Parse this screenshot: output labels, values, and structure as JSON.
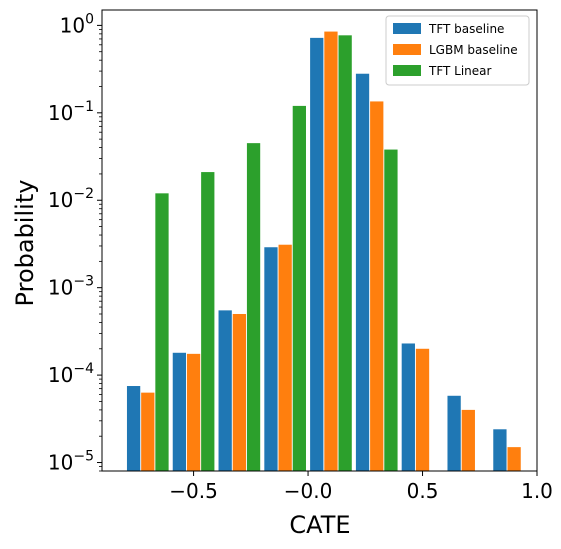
{
  "chart_data": {
    "type": "bar",
    "xlabel": "CATE",
    "ylabel": "Probability",
    "yscale": "log",
    "xlim": [
      -0.9,
      1.0
    ],
    "ylim": [
      8e-06,
      1.5
    ],
    "xticks": [
      {
        "value": -0.5,
        "label": "−0.5"
      },
      {
        "value": 0.0,
        "label": "−0.0"
      },
      {
        "value": 0.5,
        "label": "0.5"
      },
      {
        "value": 1.0,
        "label": "1.0"
      }
    ],
    "yticks": [
      {
        "value": 1e-05,
        "base": "10",
        "exp": "−5"
      },
      {
        "value": 0.0001,
        "base": "10",
        "exp": "−4"
      },
      {
        "value": 0.001,
        "base": "10",
        "exp": "−3"
      },
      {
        "value": 0.01,
        "base": "10",
        "exp": "−2"
      },
      {
        "value": 0.1,
        "base": "10",
        "exp": "−1"
      },
      {
        "value": 1,
        "base": "10",
        "exp": "0"
      }
    ],
    "bin_centers": [
      -0.7,
      -0.5,
      -0.3,
      -0.1,
      0.1,
      0.3,
      0.5,
      0.7,
      0.9
    ],
    "series": [
      {
        "name": "TFT baseline",
        "color": "#1f77b4",
        "values": [
          7.5e-05,
          0.00018,
          0.00055,
          0.0029,
          0.72,
          0.28,
          0.00023,
          5.8e-05,
          2.4e-05
        ]
      },
      {
        "name": "LGBM baseline",
        "color": "#ff7f0e",
        "values": [
          6.3e-05,
          0.000175,
          0.0005,
          0.0031,
          0.85,
          0.135,
          0.0002,
          4e-05,
          1.5e-05
        ]
      },
      {
        "name": "TFT Linear",
        "color": "#2ca02c",
        "values": [
          0.012,
          0.021,
          0.045,
          0.12,
          0.77,
          0.038,
          null,
          null,
          null
        ]
      }
    ],
    "grid": false,
    "legend_position": "top-right"
  }
}
